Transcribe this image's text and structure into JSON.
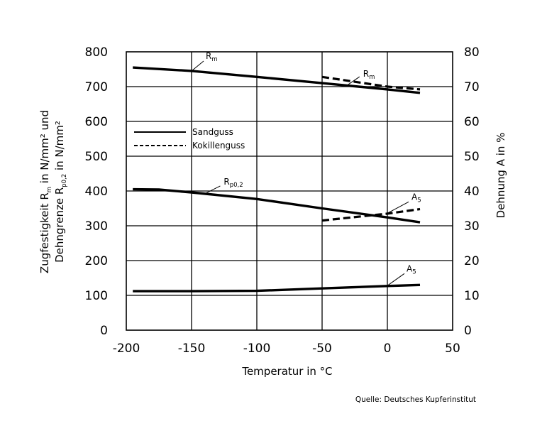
{
  "chart_data": {
    "type": "line",
    "xlabel": "Temperatur in °C",
    "ylabel_left_line1": "Zugfestigkeit R",
    "ylabel_left_line1_sub": "m",
    "ylabel_left_line1_rest": " in N/mm² und",
    "ylabel_left_line2": "Dehngrenze R",
    "ylabel_left_line2_sub": "p0,2",
    "ylabel_left_line2_rest": " in N/mm²",
    "ylabel_right": "Dehnung A in %",
    "xlim": [
      -200,
      50
    ],
    "ylim_left": [
      0,
      800
    ],
    "ylim_right": [
      0,
      80
    ],
    "x_ticks": [
      -200,
      -150,
      -100,
      -50,
      0,
      50
    ],
    "x_tick_labels": [
      "-200",
      "-150",
      "-100",
      "-50",
      "0",
      "50"
    ],
    "y_left_ticks": [
      0,
      100,
      200,
      300,
      400,
      500,
      600,
      700,
      800
    ],
    "y_left_tick_labels": [
      "0",
      "100",
      "200",
      "300",
      "400",
      "500",
      "600",
      "700",
      "800"
    ],
    "y_right_ticks": [
      0,
      10,
      20,
      30,
      40,
      50,
      60,
      70,
      80
    ],
    "y_right_tick_labels": [
      "0",
      "10",
      "20",
      "30",
      "40",
      "50",
      "60",
      "70",
      "80"
    ],
    "grid": true,
    "legend": {
      "placement": "upper-left",
      "entries": [
        {
          "label": "Sandguss",
          "style": "solid"
        },
        {
          "label": "Kokillenguss",
          "style": "dashed"
        }
      ]
    },
    "series": [
      {
        "label_main": "R",
        "label_sub": "m",
        "style": "solid",
        "axis": "left",
        "points": [
          [
            -195,
            755
          ],
          [
            -150,
            745
          ],
          [
            -100,
            728
          ],
          [
            -50,
            710
          ],
          [
            0,
            692
          ],
          [
            25,
            682
          ]
        ]
      },
      {
        "label_main": "R",
        "label_sub": "m",
        "style": "dashed",
        "axis": "left",
        "points": [
          [
            -50,
            728
          ],
          [
            0,
            700
          ],
          [
            25,
            692
          ]
        ]
      },
      {
        "label_main": "R",
        "label_sub": "p0,2",
        "style": "solid",
        "axis": "left",
        "points": [
          [
            -195,
            405
          ],
          [
            -175,
            404
          ],
          [
            -150,
            396
          ],
          [
            -100,
            377
          ],
          [
            -50,
            350
          ],
          [
            0,
            324
          ],
          [
            25,
            310
          ]
        ]
      },
      {
        "label_main": "A",
        "label_sub": "5",
        "style": "dashed",
        "axis": "right",
        "points": [
          [
            -50,
            31.5
          ],
          [
            0,
            33.5
          ],
          [
            25,
            34.8
          ]
        ]
      },
      {
        "label_main": "A",
        "label_sub": "5",
        "style": "solid",
        "axis": "right",
        "points": [
          [
            -195,
            11.2
          ],
          [
            -150,
            11.2
          ],
          [
            -100,
            11.3
          ],
          [
            -50,
            12
          ],
          [
            0,
            12.7
          ],
          [
            25,
            13
          ]
        ]
      }
    ],
    "annotations": [
      {
        "main": "R",
        "sub": "m",
        "series": 0
      },
      {
        "main": "R",
        "sub": "m",
        "series": 1
      },
      {
        "main": "R",
        "sub": "p0,2",
        "series": 2
      },
      {
        "main": "A",
        "sub": "5",
        "series": 3
      },
      {
        "main": "A",
        "sub": "5",
        "series": 4
      }
    ],
    "source": "Quelle: Deutsches Kupferinstitut"
  }
}
